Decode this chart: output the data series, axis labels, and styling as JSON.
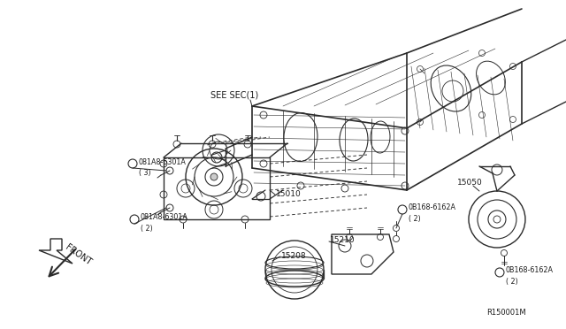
{
  "bg_color": "#ffffff",
  "line_color": "#2a2a2a",
  "label_color": "#1a1a1a",
  "figsize": [
    6.4,
    3.72
  ],
  "dpi": 100,
  "watermark": "R150001M",
  "labels": {
    "see_sec": "SEE SEC(1)",
    "p15010": "15010",
    "p15208": "15208",
    "p15210": "15210",
    "p15050": "15050",
    "boltA3_line1": "®081A8-6301A",
    "boltA3_line2": "( 3)",
    "boltA2_line1": "®081A8-6301A",
    "boltA2_line2": "( 2)",
    "bolt62_top_line1": "®0B168-6162A",
    "bolt62_top_line2": "( 2)",
    "bolt62_bot_line1": "®0B168-6162A",
    "bolt62_bot_line2": "( 2)",
    "front": "FRONT"
  }
}
